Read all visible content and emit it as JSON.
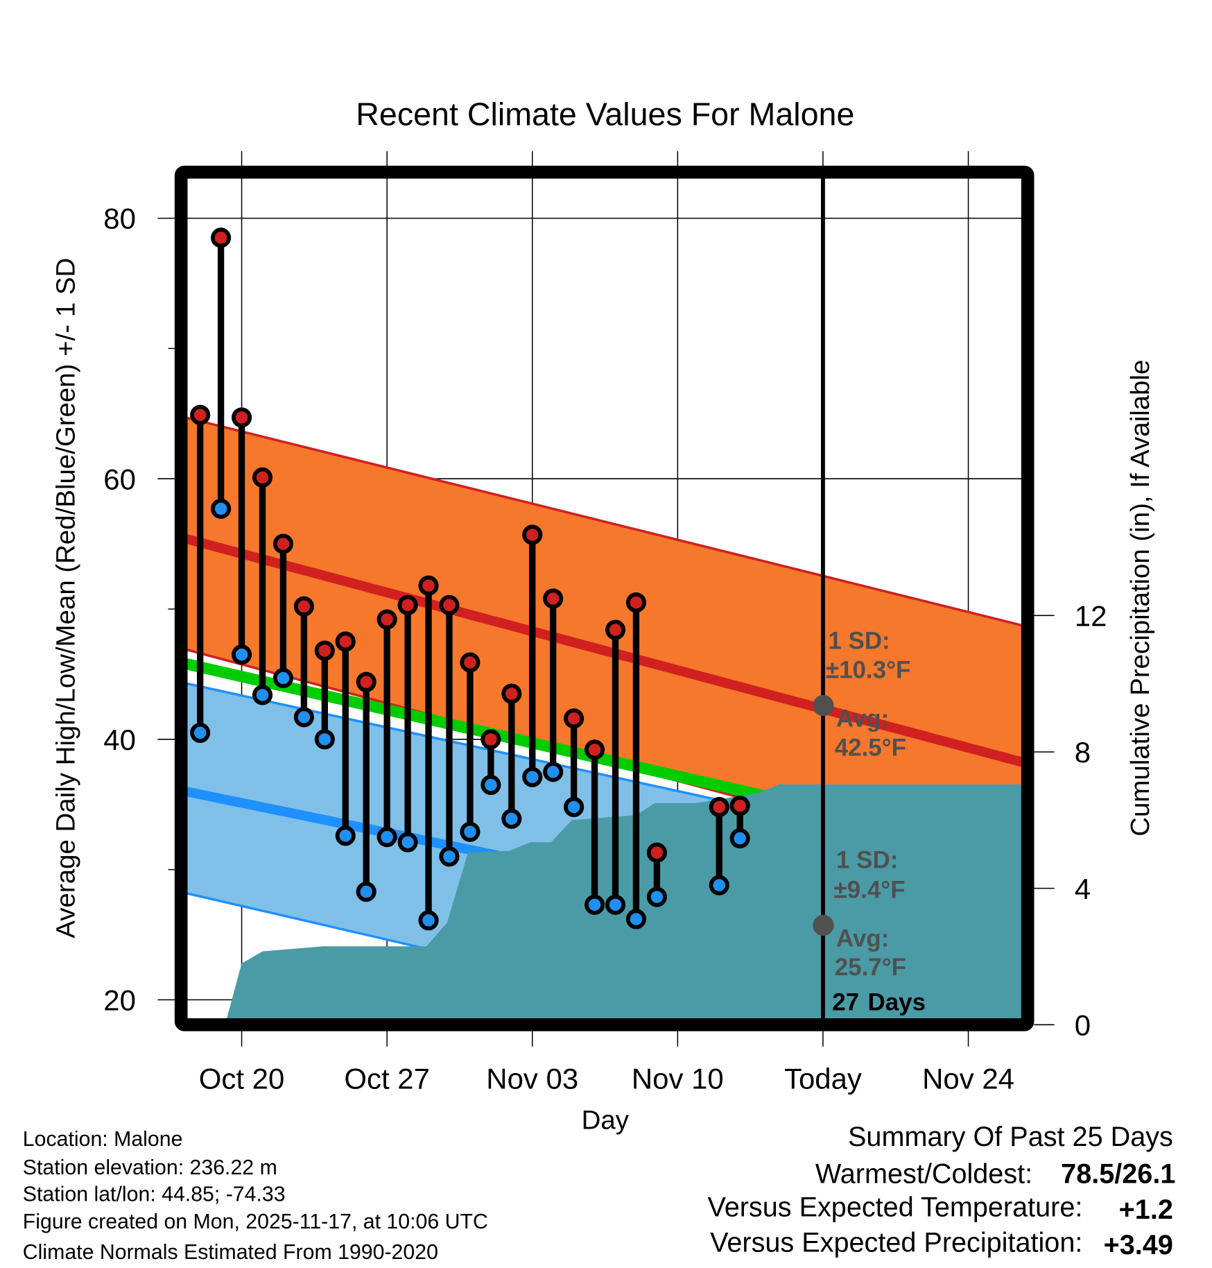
{
  "chart_data": {
    "type": "line",
    "title": "Recent Climate Values For Malone",
    "xlabel": "Day",
    "ylabel": "Average Daily High/Low/Mean (Red/Blue/Green) +/- 1 SD",
    "y2label": "Cumulative Precipitation (in), If Available",
    "ylim": [
      18.6,
      83.5
    ],
    "y2lim": [
      0,
      18.5
    ],
    "yticks": [
      20,
      40,
      60,
      80
    ],
    "yminor": [
      30,
      50,
      70
    ],
    "y2ticks": [
      0,
      4,
      8,
      12
    ],
    "x_ticks": [
      {
        "day": 0,
        "label": "Oct 20"
      },
      {
        "day": 7,
        "label": "Oct 27"
      },
      {
        "day": 14,
        "label": "Nov 03"
      },
      {
        "day": 21,
        "label": "Nov 10"
      },
      {
        "day": 28,
        "label": "Today"
      },
      {
        "day": 35,
        "label": "Nov 24"
      }
    ],
    "x_range_days": [
      -2.7,
      37.7
    ],
    "grid": true,
    "days": [
      "Oct 18",
      "Oct 19",
      "Oct 20",
      "Oct 21",
      "Oct 22",
      "Oct 23",
      "Oct 24",
      "Oct 25",
      "Oct 26",
      "Oct 27",
      "Oct 28",
      "Oct 29",
      "Oct 30",
      "Oct 31",
      "Nov 01",
      "Nov 02",
      "Nov 03",
      "Nov 04",
      "Nov 05",
      "Nov 06",
      "Nov 07",
      "Nov 08",
      "Nov 09",
      "Nov 12",
      "Nov 13"
    ],
    "day_index": [
      -2,
      -1,
      0,
      1,
      2,
      3,
      4,
      5,
      6,
      7,
      8,
      9,
      10,
      11,
      12,
      13,
      14,
      15,
      16,
      17,
      18,
      19,
      20,
      23,
      24
    ],
    "series": [
      {
        "name": "Daily High",
        "color": "#d02020",
        "values": [
          64.9,
          78.5,
          64.7,
          60.1,
          55.0,
          50.2,
          46.8,
          47.5,
          44.4,
          49.2,
          50.3,
          51.8,
          50.3,
          45.9,
          40.0,
          43.5,
          55.7,
          50.8,
          41.6,
          39.2,
          48.4,
          50.5,
          31.3,
          34.8,
          34.9
        ]
      },
      {
        "name": "Daily Low",
        "color": "#2090f0",
        "values": [
          40.5,
          57.7,
          46.5,
          43.4,
          44.7,
          41.7,
          40.0,
          32.6,
          28.3,
          32.5,
          32.1,
          26.1,
          31.0,
          32.9,
          36.5,
          33.9,
          37.1,
          37.5,
          34.8,
          27.3,
          27.3,
          26.2,
          27.9,
          28.8,
          32.4
        ]
      }
    ],
    "normals": {
      "high_mean": {
        "start": 55.4,
        "end": 38.2,
        "color": "#d02020"
      },
      "high_upper": {
        "start": 64.7,
        "end": 48.7
      },
      "high_lower": {
        "start": 46.9,
        "end": 29.7
      },
      "high_band_color": "#f5782d",
      "mean_mean": {
        "start": 45.8,
        "end": 31.1,
        "color": "#00cc00"
      },
      "low_mean": {
        "start": 36.0,
        "end": 22.8,
        "color": "#1e90ff"
      },
      "low_upper": {
        "start": 44.3,
        "end": 30.2
      },
      "low_lower": {
        "start": 28.2,
        "end": 13.3
      },
      "low_band_color": "#80c0e8"
    },
    "precipitation": {
      "color": "#4a9ba5",
      "points": [
        [
          -0.8,
          0
        ],
        [
          0,
          1.8
        ],
        [
          1,
          2.15
        ],
        [
          3.9,
          2.3
        ],
        [
          8.9,
          2.3
        ],
        [
          9.9,
          3.0
        ],
        [
          10.9,
          5.05
        ],
        [
          12.9,
          5.1
        ],
        [
          13.9,
          5.35
        ],
        [
          14.9,
          5.35
        ],
        [
          15.9,
          6.0
        ],
        [
          19,
          6.15
        ],
        [
          19.9,
          6.5
        ],
        [
          21.9,
          6.5
        ],
        [
          22.9,
          6.6
        ],
        [
          24.9,
          6.8
        ],
        [
          25.9,
          7.05
        ],
        [
          37.7,
          7.05
        ]
      ]
    },
    "annotations": {
      "high_sd_label": "1 SD:",
      "high_sd_value": "±10.3°F",
      "high_avg_label": "Avg:",
      "high_avg_value": "42.5°F",
      "high_avg": 42.5,
      "low_sd_label": "1 SD:",
      "low_sd_value": "±9.4°F",
      "low_avg_label": "Avg:",
      "low_avg_value": "25.7°F",
      "low_avg": 25.7,
      "days_count": "27",
      "days_label": "Days"
    }
  },
  "footer": {
    "lines": [
      "Location: Malone",
      "Station elevation: 236.22 m",
      "Station lat/lon: 44.85; -74.33",
      "Figure created on Mon, 2025-11-17, at 10:06 UTC",
      "Climate Normals Estimated From 1990-2020"
    ]
  },
  "summary": {
    "title": "Summary Of Past 25 Days",
    "warm_cold_label": "Warmest/Coldest:",
    "warm_cold_value": "78.5/26.1",
    "temp_label": "Versus Expected Temperature:",
    "temp_value": "+1.2",
    "temp_color": "#d02020",
    "precip_label": "Versus Expected Precipitation:",
    "precip_value": "+3.49",
    "precip_color": "#00bb00"
  }
}
